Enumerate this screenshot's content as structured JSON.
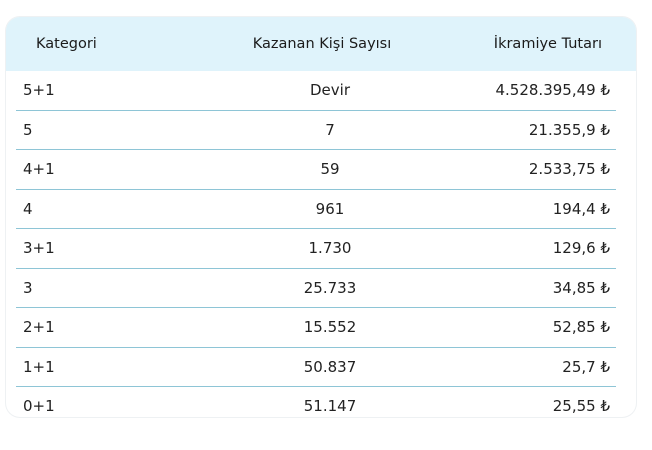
{
  "table": {
    "headers": {
      "category": "Kategori",
      "winners": "Kazanan Kişi Sayısı",
      "prize": "İkramiye Tutarı"
    },
    "rows": [
      {
        "category": "5+1",
        "winners": "Devir",
        "prize": "4.528.395,49 ₺"
      },
      {
        "category": "5",
        "winners": "7",
        "prize": "21.355,9 ₺"
      },
      {
        "category": "4+1",
        "winners": "59",
        "prize": "2.533,75 ₺"
      },
      {
        "category": "4",
        "winners": "961",
        "prize": "194,4 ₺"
      },
      {
        "category": "3+1",
        "winners": "1.730",
        "prize": "129,6 ₺"
      },
      {
        "category": "3",
        "winners": "25.733",
        "prize": "34,85 ₺"
      },
      {
        "category": "2+1",
        "winners": "15.552",
        "prize": "52,85 ₺"
      },
      {
        "category": "1+1",
        "winners": "50.837",
        "prize": "25,7 ₺"
      },
      {
        "category": "0+1",
        "winners": "51.147",
        "prize": "25,55 ₺"
      }
    ]
  }
}
